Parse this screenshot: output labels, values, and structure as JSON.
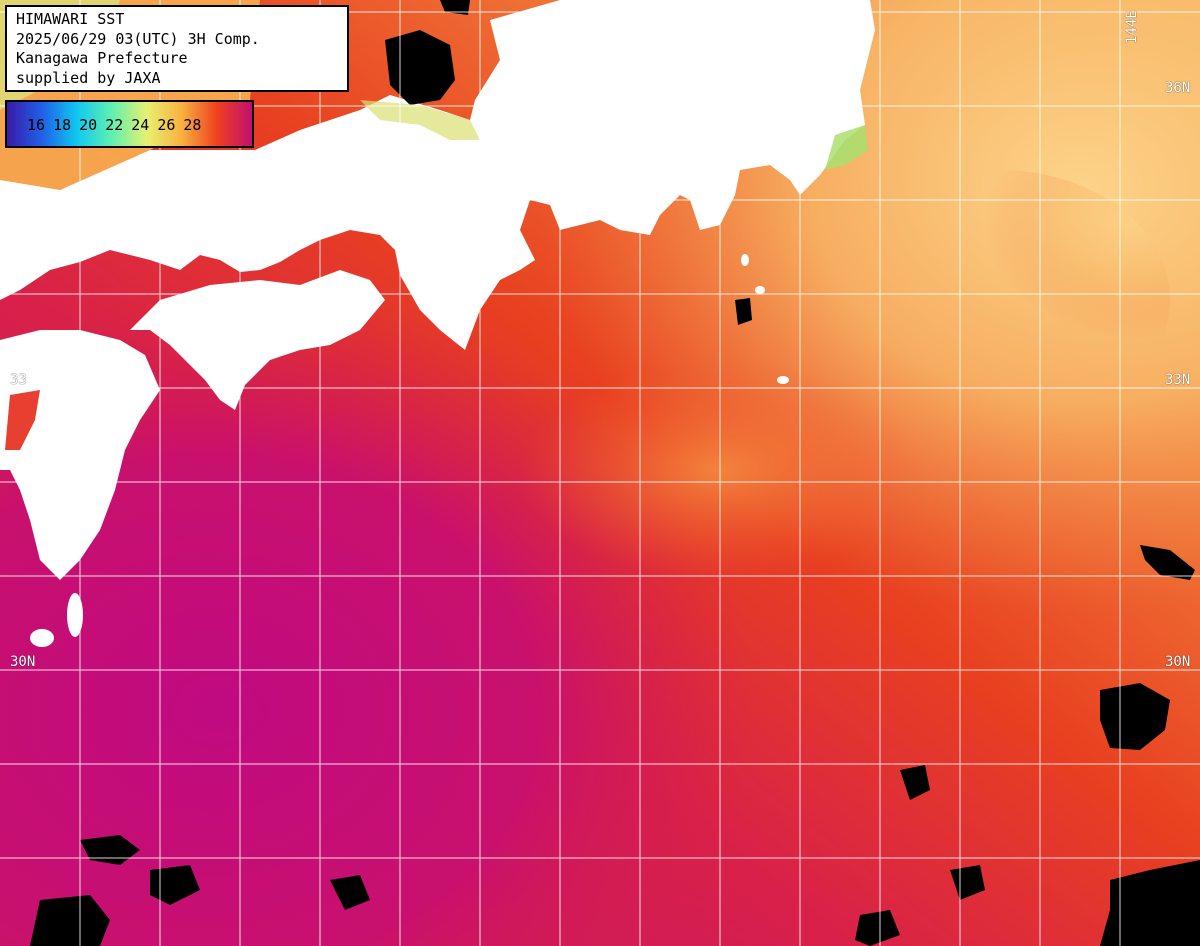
{
  "info": {
    "line1": "HIMAWARI SST",
    "line2": "2025/06/29 03(UTC) 3H Comp.",
    "line3": "Kanagawa Prefecture",
    "line4": "supplied by JAXA"
  },
  "legend": {
    "labels": [
      "16",
      "18",
      "20",
      "22",
      "24",
      "26",
      "28"
    ],
    "gradient_colors": [
      "#3a1aa8",
      "#2060e8",
      "#10c8f0",
      "#60f0b0",
      "#e8f070",
      "#f8b040",
      "#f04020",
      "#c01070"
    ]
  },
  "axis": {
    "lat_36": "36N",
    "lat_33": "33N",
    "lat_30": "30N",
    "lat_30_left": "30N",
    "lat_33_left": "33",
    "lon_144": "144E"
  },
  "colors": {
    "land": "#ffffff",
    "cloud": "#000000",
    "warm_water": "#c0107a",
    "kuroshio": "#e84020",
    "offshore": "#f06830",
    "cool_water": "#f8c060",
    "coastal_cool": "#c8e870",
    "grid": "#ffffff"
  }
}
